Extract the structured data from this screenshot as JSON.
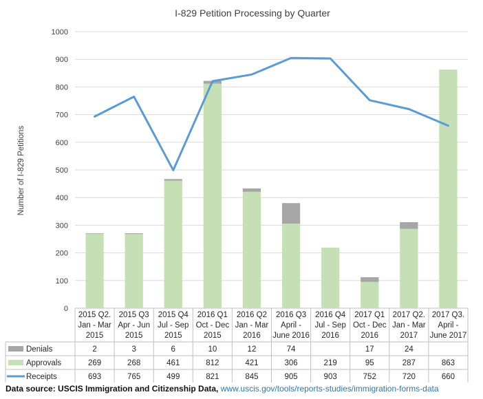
{
  "chart_data": {
    "type": "bar",
    "stacked": true,
    "title": "I-829 Petition Processing by Quarter",
    "xlabel": "",
    "ylabel": "Number  of I-829 Petitions",
    "ylim": [
      0,
      1000
    ],
    "yticks": [
      0,
      100,
      200,
      300,
      400,
      500,
      600,
      700,
      800,
      900,
      1000
    ],
    "grid": true,
    "legend": "table-below",
    "categories": [
      [
        "2015 Q2.",
        "Jan - Mar",
        "2015"
      ],
      [
        "2015 Q3",
        "Apr - Jun",
        "2015"
      ],
      [
        "2015 Q4",
        "Jul - Sep",
        "2015"
      ],
      [
        "2016 Q1",
        "Oct - Dec",
        "2015"
      ],
      [
        "2016 Q2",
        "Jan - Mar",
        "2016"
      ],
      [
        "2016 Q3",
        "April -",
        "June 2016"
      ],
      [
        "2016 Q4",
        "Jul - Sep",
        "2016"
      ],
      [
        "2017 Q1",
        "Oct - Dec",
        "2016"
      ],
      [
        "2017 Q2.",
        "Jan - Mar",
        "2017"
      ],
      [
        "2017 Q3.",
        "April -",
        "June 2017"
      ]
    ],
    "series": [
      {
        "name": "Denials",
        "kind": "bar",
        "color": "#a6a6a6",
        "values": [
          2,
          3,
          6,
          10,
          12,
          74,
          null,
          17,
          24,
          null
        ]
      },
      {
        "name": "Approvals",
        "kind": "bar",
        "color": "#c5e0b4",
        "values": [
          269,
          268,
          461,
          812,
          421,
          306,
          219,
          95,
          287,
          863
        ]
      },
      {
        "name": "Receipts",
        "kind": "line",
        "color": "#5b9bd5",
        "values": [
          693,
          765,
          499,
          821,
          845,
          905,
          903,
          752,
          720,
          660
        ]
      }
    ]
  },
  "source": {
    "label": "Data source: USCIS Immigration and Citizenship Data, ",
    "url": "www.uscis.gov/tools/reports-studies/immigration-forms-data"
  }
}
